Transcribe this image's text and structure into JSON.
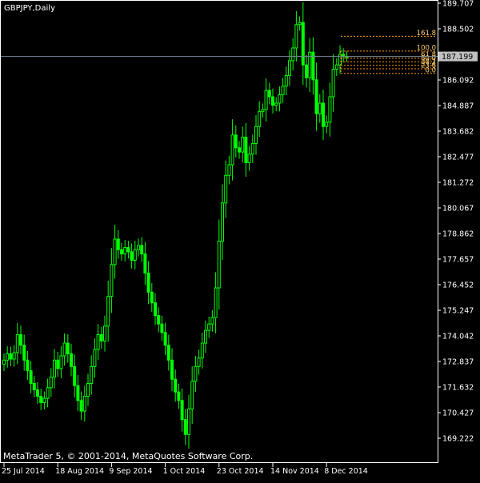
{
  "window": {
    "title": "GBPJPY,Daily"
  },
  "footer": {
    "copyright": "MetaTrader 5, © 2001-2014, MetaQuotes Software Corp."
  },
  "colors": {
    "background": "#000000",
    "frame": "#ffffff",
    "text": "#ffffff",
    "candle": "#00ff00",
    "bid_line": "#778899",
    "bid_tag_bg": "#c0c0c0",
    "bid_tag_text": "#000000",
    "fibo": "#ff9900",
    "fibo_label": "#ffd070"
  },
  "chart_data": {
    "type": "candlestick",
    "symbol": "GBPJPY",
    "timeframe": "Daily",
    "ylim": [
      168.2,
      189.707
    ],
    "y_ticks": [
      189.707,
      188.502,
      187.297,
      186.092,
      184.887,
      183.682,
      182.477,
      181.272,
      180.067,
      178.862,
      177.657,
      176.452,
      175.247,
      174.042,
      172.837,
      171.632,
      170.427,
      169.222
    ],
    "x_ticks": [
      {
        "label": "25 Jul 2014",
        "index": 0
      },
      {
        "label": "18 Aug 2014",
        "index": 16
      },
      {
        "label": "9 Sep 2014",
        "index": 32
      },
      {
        "label": "1 Oct 2014",
        "index": 48
      },
      {
        "label": "23 Oct 2014",
        "index": 64
      },
      {
        "label": "14 Nov 2014",
        "index": 80
      },
      {
        "label": "8 Dec 2014",
        "index": 96
      }
    ],
    "current_price": 187.199,
    "fibonacci": [
      {
        "level": "161.8",
        "price": 188.15
      },
      {
        "level": "100.0",
        "price": 187.45
      },
      {
        "level": "61.8",
        "price": 187.12
      },
      {
        "level": "50.0",
        "price": 186.95
      },
      {
        "level": "38.2",
        "price": 186.78
      },
      {
        "level": "23.6",
        "price": 186.62
      },
      {
        "level": "0.0",
        "price": 186.4
      }
    ],
    "close": [
      172.9,
      173.2,
      172.95,
      173.25,
      174.1,
      173.6,
      172.9,
      172.4,
      171.8,
      171.5,
      171.2,
      170.9,
      171.1,
      171.6,
      172.1,
      172.9,
      172.5,
      173.1,
      173.7,
      173.2,
      172.6,
      171.7,
      171.0,
      170.5,
      171.2,
      171.8,
      172.6,
      173.4,
      174.1,
      173.8,
      174.5,
      175.9,
      177.4,
      178.6,
      178.1,
      177.9,
      178.2,
      178.0,
      177.6,
      178.1,
      178.3,
      177.9,
      177.0,
      176.1,
      175.6,
      175.0,
      174.6,
      174.2,
      173.6,
      172.9,
      172.0,
      171.4,
      171.0,
      170.1,
      169.4,
      170.6,
      171.9,
      172.6,
      173.0,
      173.7,
      174.3,
      174.6,
      174.9,
      176.3,
      178.5,
      180.3,
      181.6,
      182.1,
      183.5,
      182.9,
      182.7,
      183.4,
      182.2,
      182.6,
      183.1,
      183.9,
      184.6,
      184.7,
      185.6,
      185.3,
      184.9,
      185.0,
      185.4,
      185.8,
      186.3,
      187.0,
      187.6,
      188.7,
      188.8,
      186.8,
      186.2,
      187.4,
      186.1,
      184.5,
      185.0,
      183.9,
      184.1,
      185.3,
      186.6,
      186.8,
      187.3,
      187.2,
      187.199
    ]
  }
}
